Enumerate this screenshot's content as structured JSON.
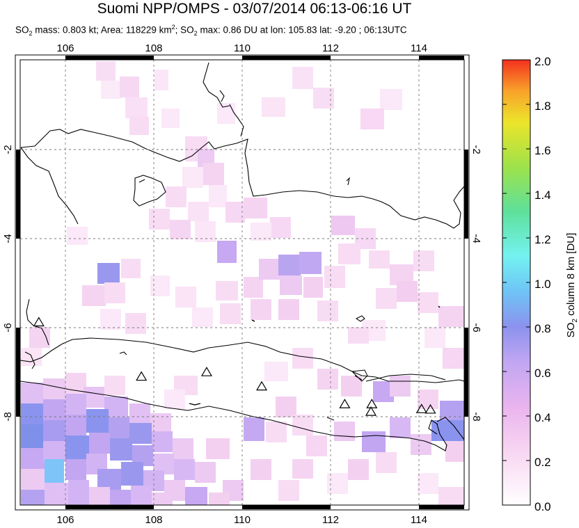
{
  "header": {
    "title": "Suomi NPP/OMPS - 03/07/2014 06:13-06:16 UT",
    "subtitle_so2_label": "SO",
    "subtitle_so2_sub": "2",
    "subtitle_mass": " mass: 0.803 kt; Area: 118229 km",
    "subtitle_sup": "2",
    "subtitle_rest": "; SO",
    "subtitle_rest_sub": "2",
    "subtitle_tail": " max: 0.86 DU at lon: 105.83 lat: -9.20 ; 06:13UTC"
  },
  "map": {
    "lon_ticks": [
      "106",
      "108",
      "110",
      "112",
      "114"
    ],
    "lat_ticks": [
      "-2",
      "-4",
      "-6",
      "-8"
    ],
    "lon_range": [
      105,
      115
    ],
    "lat_range": [
      -10.2,
      -0.2
    ],
    "volcano_marker": "triangle-icon",
    "volcanoes": [
      {
        "lon": 105.42,
        "lat": -6.1
      },
      {
        "lon": 107.73,
        "lat": -7.32
      },
      {
        "lon": 109.2,
        "lat": -7.22
      },
      {
        "lon": 110.44,
        "lat": -7.54
      },
      {
        "lon": 112.31,
        "lat": -7.94
      },
      {
        "lon": 112.92,
        "lat": -7.94
      },
      {
        "lon": 112.9,
        "lat": -8.11
      },
      {
        "lon": 114.04,
        "lat": -8.05
      },
      {
        "lon": 114.24,
        "lat": -8.06
      }
    ]
  },
  "colorbar": {
    "ticks": [
      "2.0",
      "1.8",
      "1.6",
      "1.4",
      "1.2",
      "1.0",
      "0.8",
      "0.6",
      "0.4",
      "0.2",
      "0.0"
    ],
    "label_main": "SO",
    "label_sub": "2",
    "label_rest": " column 8 km [DU]",
    "range": [
      0,
      2
    ]
  }
}
